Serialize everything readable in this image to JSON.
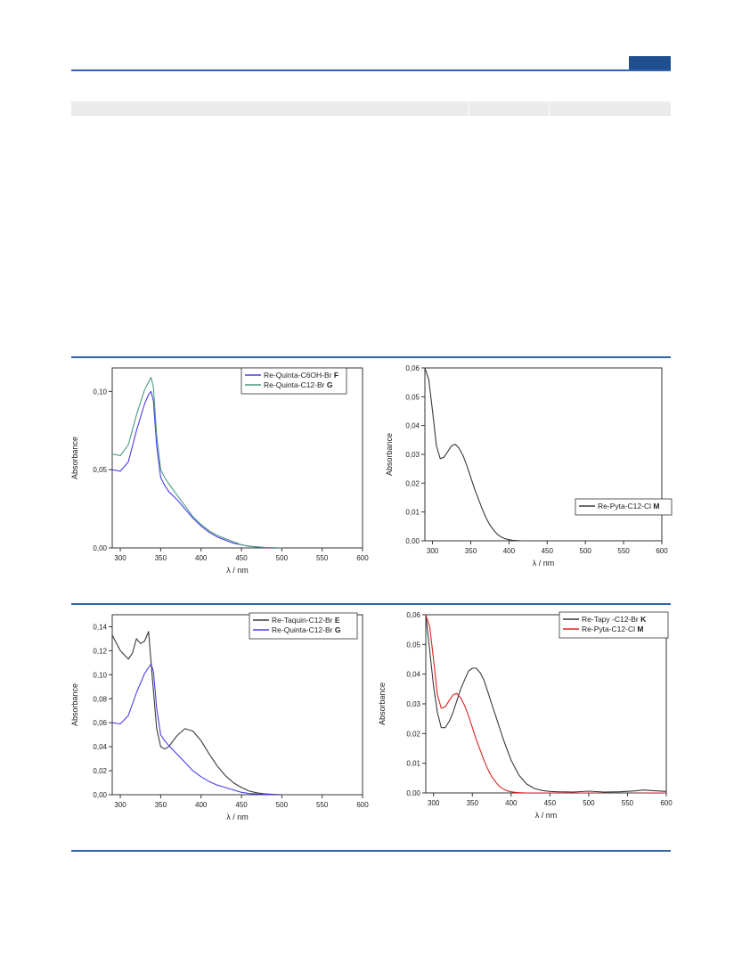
{
  "colors": {
    "rule": "#2f64a8",
    "badge": "#1f4f8f",
    "header_bar": "#ebebeb"
  },
  "chart_data": [
    {
      "type": "line",
      "xlabel": "λ / nm",
      "ylabel": "Absorbance",
      "xlim": [
        290,
        600
      ],
      "ylim": [
        0,
        0.115
      ],
      "xticks": [
        "300",
        "350",
        "400",
        "450",
        "500",
        "550",
        "600"
      ],
      "yticks": [
        "0,00",
        "0,05",
        "0,10"
      ],
      "legend_position": "top-right",
      "series": [
        {
          "name": "Re-Quinta-C6OH-Br",
          "name_bold": "F",
          "color": "#4a3ee6",
          "x": [
            290,
            300,
            310,
            320,
            330,
            335,
            338,
            341,
            345,
            350,
            355,
            360,
            370,
            380,
            390,
            400,
            410,
            420,
            430,
            440,
            450,
            460,
            480,
            500
          ],
          "y": [
            0.05,
            0.049,
            0.055,
            0.075,
            0.092,
            0.098,
            0.1,
            0.094,
            0.065,
            0.045,
            0.04,
            0.036,
            0.031,
            0.025,
            0.019,
            0.014,
            0.01,
            0.007,
            0.005,
            0.003,
            0.002,
            0.001,
            0.0003,
            0.0
          ]
        },
        {
          "name": "Re-Quinta-C12-Br",
          "name_bold": "G",
          "color": "#4a9a85",
          "x": [
            290,
            300,
            310,
            320,
            330,
            335,
            338,
            341,
            345,
            350,
            355,
            360,
            370,
            380,
            390,
            400,
            410,
            420,
            430,
            440,
            450,
            460,
            480,
            500
          ],
          "y": [
            0.06,
            0.059,
            0.066,
            0.085,
            0.101,
            0.106,
            0.109,
            0.103,
            0.072,
            0.05,
            0.045,
            0.041,
            0.034,
            0.027,
            0.02,
            0.015,
            0.011,
            0.008,
            0.006,
            0.004,
            0.002,
            0.001,
            0.0003,
            0.0
          ]
        }
      ]
    },
    {
      "type": "line",
      "xlabel": "λ / nm",
      "ylabel": "Absorbance",
      "xlim": [
        290,
        600
      ],
      "ylim": [
        0,
        0.06
      ],
      "xticks": [
        "300",
        "350",
        "400",
        "450",
        "500",
        "550",
        "600"
      ],
      "yticks": [
        "0,00",
        "0,01",
        "0,02",
        "0,03",
        "0,04",
        "0,05",
        "0,06"
      ],
      "legend_position": "center-right",
      "series": [
        {
          "name": "Re-Pyta-C12-Cl",
          "name_bold": "M",
          "color": "#3a3a3a",
          "x": [
            290,
            295,
            300,
            305,
            310,
            315,
            320,
            325,
            330,
            335,
            340,
            345,
            350,
            355,
            360,
            365,
            370,
            375,
            380,
            385,
            390,
            395,
            400,
            405,
            410,
            415,
            420
          ],
          "y": [
            0.06,
            0.056,
            0.045,
            0.033,
            0.0285,
            0.029,
            0.031,
            0.033,
            0.0335,
            0.032,
            0.0295,
            0.026,
            0.022,
            0.018,
            0.0145,
            0.011,
            0.008,
            0.0055,
            0.0037,
            0.0022,
            0.0013,
            0.0007,
            0.0004,
            0.0002,
            0.0001,
            0.0,
            0.0
          ]
        }
      ]
    },
    {
      "type": "line",
      "xlabel": "λ / nm",
      "ylabel": "Absorbance",
      "xlim": [
        290,
        600
      ],
      "ylim": [
        0,
        0.15
      ],
      "xticks": [
        "300",
        "350",
        "400",
        "450",
        "500",
        "550",
        "600"
      ],
      "yticks": [
        "0,00",
        "0,02",
        "0,04",
        "0,06",
        "0,08",
        "0,10",
        "0,12",
        "0,14"
      ],
      "legend_position": "top-right",
      "series": [
        {
          "name": "Re-Taquin-C12-Br",
          "name_bold": "E",
          "color": "#3a3a3a",
          "x": [
            290,
            300,
            310,
            315,
            320,
            325,
            330,
            335,
            340,
            345,
            350,
            355,
            360,
            370,
            380,
            390,
            400,
            410,
            420,
            430,
            440,
            450,
            460,
            470,
            480,
            490,
            500
          ],
          "y": [
            0.133,
            0.12,
            0.113,
            0.118,
            0.13,
            0.126,
            0.128,
            0.136,
            0.095,
            0.055,
            0.04,
            0.038,
            0.04,
            0.049,
            0.055,
            0.053,
            0.045,
            0.034,
            0.024,
            0.016,
            0.01,
            0.006,
            0.003,
            0.0015,
            0.0007,
            0.0002,
            0.0
          ]
        },
        {
          "name": "Re-Quinta-C12-Br",
          "name_bold": "G",
          "color": "#4a3ee6",
          "x": [
            290,
            300,
            310,
            320,
            330,
            335,
            338,
            341,
            345,
            350,
            355,
            360,
            370,
            380,
            390,
            400,
            410,
            420,
            430,
            440,
            450,
            460,
            480,
            500
          ],
          "y": [
            0.06,
            0.059,
            0.066,
            0.085,
            0.101,
            0.106,
            0.109,
            0.103,
            0.072,
            0.05,
            0.045,
            0.041,
            0.034,
            0.027,
            0.02,
            0.015,
            0.011,
            0.008,
            0.006,
            0.004,
            0.002,
            0.001,
            0.0003,
            0.0
          ]
        }
      ]
    },
    {
      "type": "line",
      "xlabel": "λ / nm",
      "ylabel": "Absorbance",
      "xlim": [
        290,
        600
      ],
      "ylim": [
        0,
        0.06
      ],
      "xticks": [
        "300",
        "350",
        "400",
        "450",
        "500",
        "550",
        "600"
      ],
      "yticks": [
        "0,00",
        "0,01",
        "0,02",
        "0,03",
        "0,04",
        "0,05",
        "0,06"
      ],
      "legend_position": "top-right",
      "series": [
        {
          "name": "Re-Tapy -C12-Br",
          "name_bold": "K",
          "color": "#3a3a3a",
          "x": [
            290,
            295,
            300,
            305,
            310,
            315,
            320,
            325,
            330,
            335,
            340,
            345,
            350,
            355,
            360,
            365,
            370,
            375,
            380,
            390,
            400,
            410,
            420,
            430,
            440,
            450,
            460,
            480,
            500,
            520,
            540,
            560,
            570,
            580,
            600
          ],
          "y": [
            0.06,
            0.048,
            0.036,
            0.027,
            0.022,
            0.022,
            0.024,
            0.027,
            0.031,
            0.035,
            0.038,
            0.041,
            0.042,
            0.042,
            0.0405,
            0.038,
            0.034,
            0.03,
            0.026,
            0.018,
            0.011,
            0.006,
            0.003,
            0.0015,
            0.0008,
            0.0005,
            0.0004,
            0.0003,
            0.0006,
            0.0003,
            0.0004,
            0.0007,
            0.001,
            0.0008,
            0.0005
          ]
        },
        {
          "name": "Re-Pyta-C12-Cl",
          "name_bold": "M",
          "color": "#e02020",
          "x": [
            290,
            295,
            300,
            305,
            310,
            315,
            320,
            325,
            330,
            335,
            340,
            345,
            350,
            355,
            360,
            365,
            370,
            375,
            380,
            385,
            390,
            395,
            400,
            405,
            410,
            420,
            440,
            460,
            500,
            540,
            580,
            600
          ],
          "y": [
            0.06,
            0.056,
            0.045,
            0.033,
            0.0285,
            0.029,
            0.031,
            0.033,
            0.0335,
            0.032,
            0.0295,
            0.026,
            0.022,
            0.018,
            0.0145,
            0.011,
            0.008,
            0.0055,
            0.0037,
            0.0022,
            0.0013,
            0.0007,
            0.0004,
            0.0002,
            0.0001,
            0.0,
            0.0,
            0.0,
            0.0,
            -0.0002,
            0.0,
            0.0
          ]
        }
      ]
    }
  ]
}
